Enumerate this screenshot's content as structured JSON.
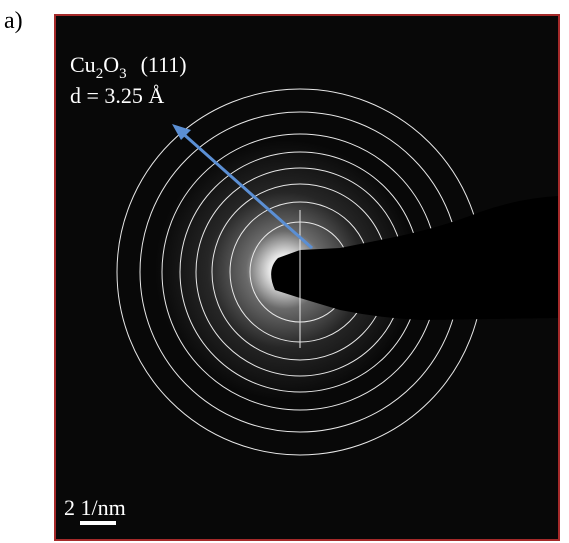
{
  "panel_label": "a)",
  "annotation": {
    "formula": [
      {
        "text": "Cu",
        "sub": false
      },
      {
        "text": "2",
        "sub": true
      },
      {
        "text": "O",
        "sub": false
      },
      {
        "text": "3",
        "sub": true
      }
    ],
    "plane": "(111)",
    "spacing": "d = 3.25 Å"
  },
  "scale_bar": {
    "label": "2 1/nm"
  }
}
